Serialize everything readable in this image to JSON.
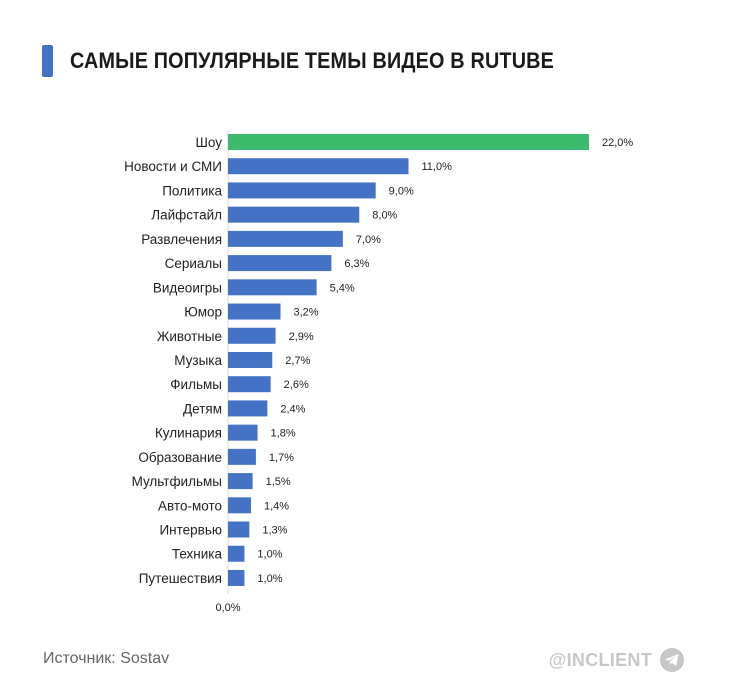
{
  "header": {
    "title": "САМЫЕ ПОПУЛЯРНЫЕ ТЕМЫ ВИДЕО В RUTUBE"
  },
  "footer": {
    "source": "Источник: Sostav",
    "brand": "@INCLIENT"
  },
  "colors": {
    "accent": "#4472c4",
    "bar": "#4472c4",
    "highlight": "#3cba6e"
  },
  "icons": {
    "brand": "telegram-icon"
  },
  "chart_data": {
    "type": "bar",
    "orientation": "horizontal",
    "title": "САМЫЕ ПОПУЛЯРНЫЕ ТЕМЫ ВИДЕО В RUTUBE",
    "categories": [
      "Шоу",
      "Новости и СМИ",
      "Политика",
      "Лайфстайл",
      "Развлечения",
      "Сериалы",
      "Видеоигры",
      "Юмор",
      "Животные",
      "Музыка",
      "Фильмы",
      "Детям",
      "Кулинария",
      "Образование",
      "Мультфильмы",
      "Авто-мото",
      "Интервью",
      "Техника",
      "Путешествия"
    ],
    "values": [
      22.0,
      11.0,
      9.0,
      8.0,
      7.0,
      6.3,
      5.4,
      3.2,
      2.9,
      2.7,
      2.6,
      2.4,
      1.8,
      1.7,
      1.5,
      1.4,
      1.3,
      1.0,
      1.0
    ],
    "value_labels": [
      "22,0%",
      "11,0%",
      "9,0%",
      "8,0%",
      "7,0%",
      "6,3%",
      "5,4%",
      "3,2%",
      "2,9%",
      "2,7%",
      "2,6%",
      "2,4%",
      "1,8%",
      "1,7%",
      "1,5%",
      "1,4%",
      "1,3%",
      "1,0%",
      "1,0%"
    ],
    "axis_min_label": "0,0%",
    "xlim": [
      0,
      22.0
    ],
    "highlight_index": 0,
    "grid": false,
    "legend": "none"
  }
}
